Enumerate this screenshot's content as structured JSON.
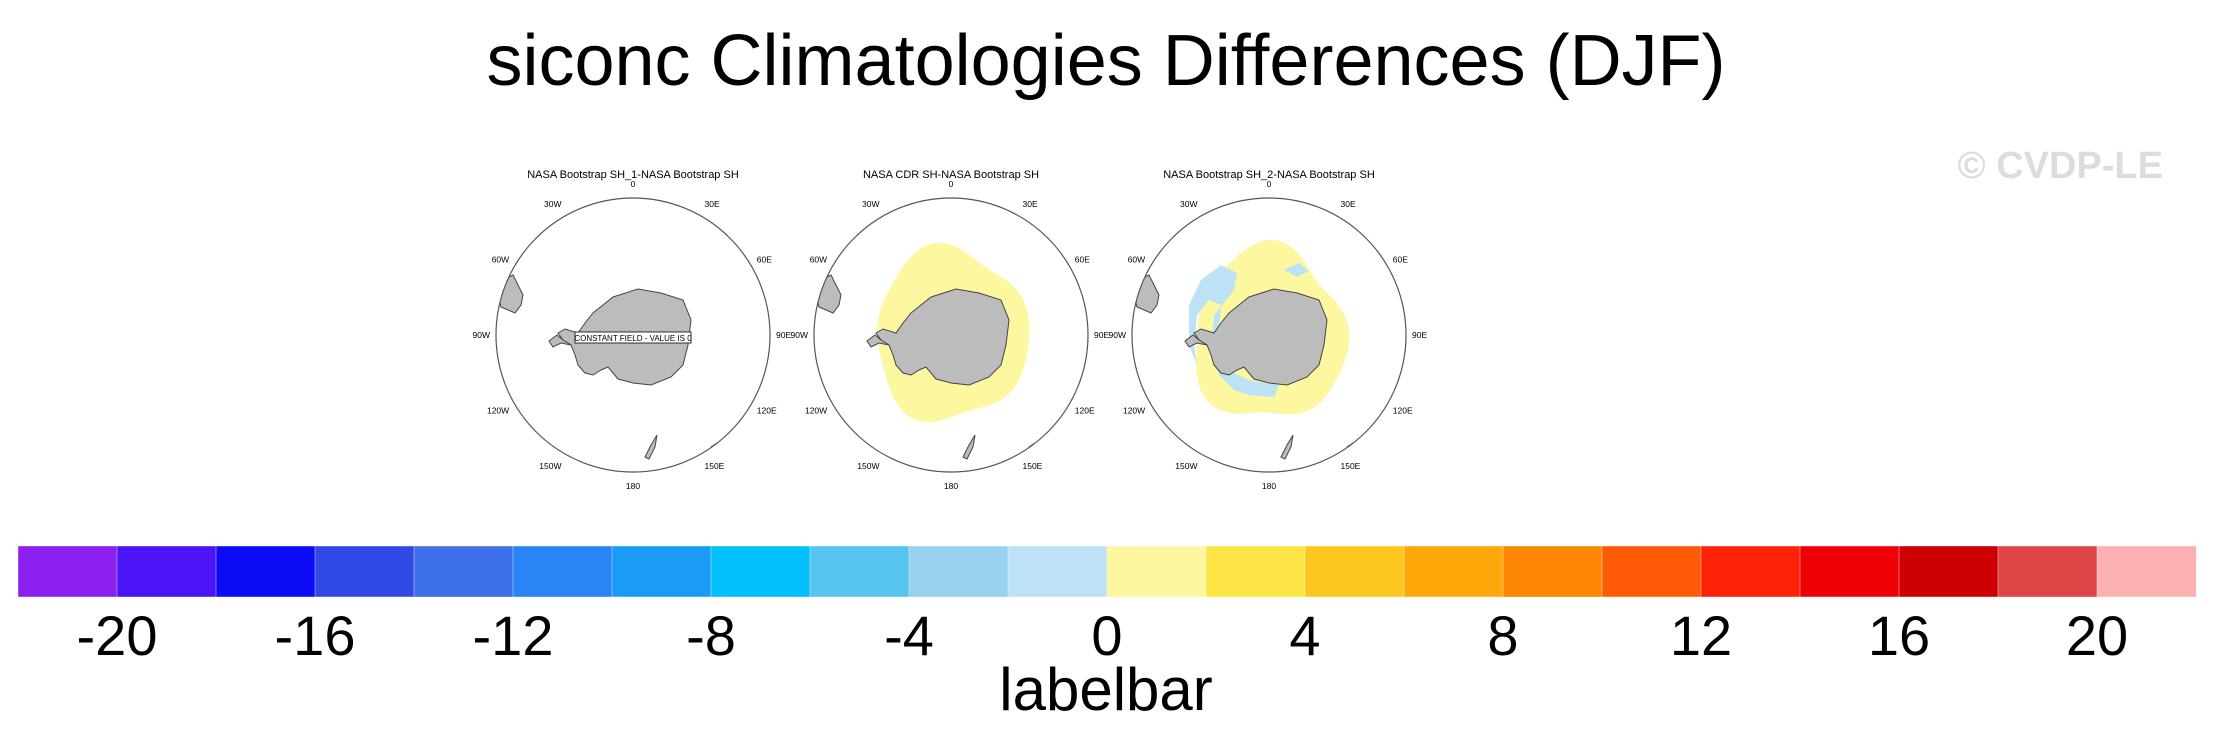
{
  "title": "siconc Climatologies Differences (DJF)",
  "watermark": "© CVDP-LE",
  "chart_data": [
    {
      "type": "map",
      "projection": "south-polar-stereographic",
      "title": "NASA Bootstrap SH_1-NASA Bootstrap SH",
      "annotation": "CONSTANT FIELD - VALUE IS 0",
      "field": "none",
      "longitude_labels": [
        "0",
        "30E",
        "60E",
        "90E",
        "120E",
        "150E",
        "180",
        "150W",
        "120W",
        "90W",
        "60W",
        "30W"
      ]
    },
    {
      "type": "map",
      "projection": "south-polar-stereographic",
      "title": "NASA CDR SH-NASA Bootstrap SH",
      "annotation": "",
      "field": "positive",
      "longitude_labels": [
        "0",
        "30E",
        "60E",
        "90E",
        "120E",
        "150E",
        "180",
        "150W",
        "120W",
        "90W",
        "60W",
        "30W"
      ]
    },
    {
      "type": "map",
      "projection": "south-polar-stereographic",
      "title": "NASA Bootstrap SH_2-NASA Bootstrap SH",
      "annotation": "",
      "field": "mixed",
      "longitude_labels": [
        "0",
        "30E",
        "60E",
        "90E",
        "120E",
        "150E",
        "180",
        "150W",
        "120W",
        "90W",
        "60W",
        "30W"
      ]
    }
  ],
  "colorbar": {
    "title": "labelbar",
    "tick_labels": [
      "-20",
      "-16",
      "-12",
      "-8",
      "-4",
      "0",
      "4",
      "8",
      "12",
      "16",
      "20"
    ],
    "colors": [
      "#8a1ff0",
      "#4a14f6",
      "#0d0cf6",
      "#3048e6",
      "#3d6fe8",
      "#2a84f5",
      "#1a9bf6",
      "#04c0fa",
      "#55c5ef",
      "#98d1ee",
      "#bde2f5",
      "#fdf7a0",
      "#fde546",
      "#fec71f",
      "#fea80a",
      "#fe8704",
      "#fe5a08",
      "#fe2208",
      "#ef0006",
      "#cc0000",
      "#de4446",
      "#fdb0b1"
    ]
  }
}
